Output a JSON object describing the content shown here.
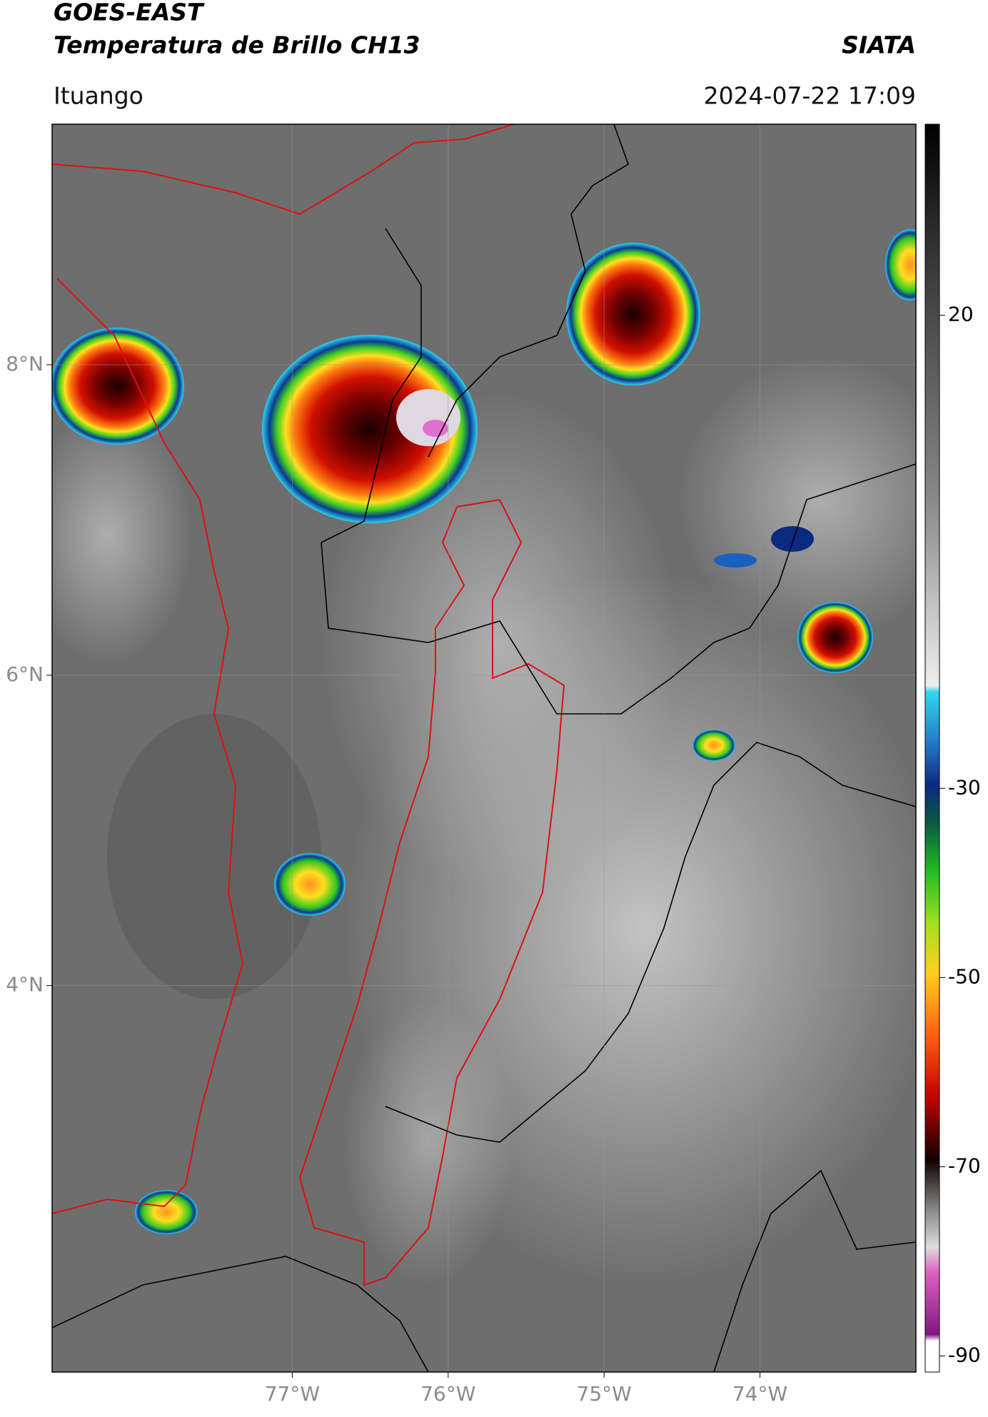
{
  "header": {
    "title": "GOES-EAST",
    "subtitle": "Temperatura de Brillo CH13",
    "org": "SIATA",
    "location": "Ituango",
    "datetime": "2024-07-22 17:09"
  },
  "map": {
    "xlim": [
      -78.54,
      -73.0
    ],
    "ylim": [
      1.51,
      9.55
    ],
    "xticks": [
      {
        "value": -77,
        "label": "77°W"
      },
      {
        "value": -76,
        "label": "76°W"
      },
      {
        "value": -75,
        "label": "75°W"
      },
      {
        "value": -74,
        "label": "74°W"
      }
    ],
    "yticks": [
      {
        "value": 8,
        "label": "8°N"
      },
      {
        "value": 6,
        "label": "6°N"
      },
      {
        "value": 4,
        "label": "4°N"
      }
    ],
    "grid": true
  },
  "colorbar": {
    "lim": [
      -91.7,
      40.2
    ],
    "ticks": [
      20,
      -30,
      -50,
      -70,
      -90
    ]
  }
}
